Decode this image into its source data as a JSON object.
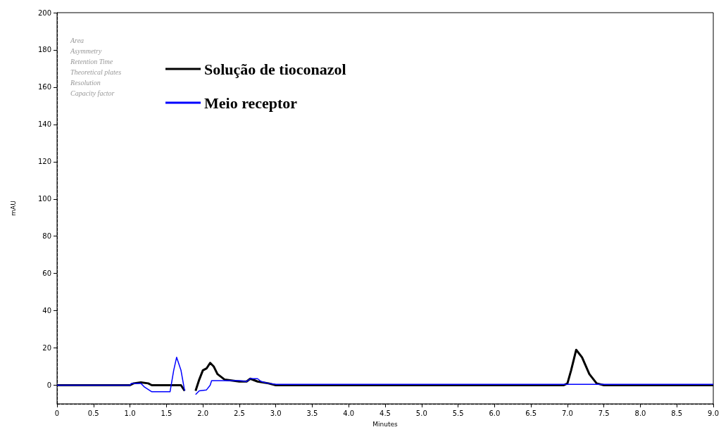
{
  "chart_data": {
    "type": "line",
    "xlabel": "Minutes",
    "ylabel": "mAU",
    "xlim": [
      0,
      9
    ],
    "xticks": [
      0,
      {
        "value": 0.5,
        "label": "0.5"
      },
      {
        "value": 1,
        "label": "1.0"
      },
      {
        "value": 1.5,
        "label": "1.5"
      },
      {
        "value": 2,
        "label": "2.0"
      },
      {
        "value": 2.5,
        "label": "2.5"
      },
      {
        "value": 3,
        "label": "3.0"
      },
      {
        "value": 3.5,
        "label": "3.5"
      },
      {
        "value": 4,
        "label": "4.0"
      },
      {
        "value": 4.5,
        "label": "4.5"
      },
      {
        "value": 5,
        "label": "5.0"
      },
      {
        "value": 5.5,
        "label": "5.5"
      },
      {
        "value": 6,
        "label": "6.0"
      },
      {
        "value": 6.5,
        "label": "6.5"
      },
      {
        "value": 7,
        "label": "7.0"
      },
      {
        "value": 7.5,
        "label": "7.5"
      },
      {
        "value": 8,
        "label": "8.0"
      },
      {
        "value": 8.5,
        "label": "8.5"
      },
      {
        "value": 9,
        "label": "9.0"
      }
    ],
    "ylim": [
      -10,
      200
    ],
    "yticks": [
      0,
      20,
      40,
      60,
      80,
      100,
      120,
      140,
      160,
      180,
      200
    ],
    "grid": false,
    "legend": "top left",
    "marker": "none",
    "line_style": "solid",
    "annotations": [
      "Area",
      "Asymmetry",
      "Retention Time",
      "Theoretical plates",
      "Resolution",
      "Capacity factor"
    ],
    "series": [
      {
        "name": "Solução de tioconazol",
        "color": "#000000",
        "x": [
          0,
          1.0,
          1.05,
          1.15,
          1.25,
          1.3,
          1.7,
          1.75,
          1.8,
          1.85,
          1.9,
          1.95,
          2.0,
          2.05,
          2.1,
          2.15,
          2.2,
          2.3,
          2.5,
          2.6,
          2.65,
          2.75,
          2.9,
          3.0,
          6.95,
          7.0,
          7.05,
          7.12,
          7.2,
          7.3,
          7.4,
          7.5,
          9.0
        ],
        "values": [
          0,
          0,
          1,
          1.5,
          1,
          0,
          0,
          -3,
          null,
          null,
          -3,
          3,
          8,
          9,
          12,
          10,
          6,
          3,
          2,
          2,
          3.5,
          2,
          1,
          0,
          0,
          1,
          8,
          19,
          15,
          6,
          1,
          0,
          0
        ]
      },
      {
        "name": "Meio receptor",
        "color": "#0000ff",
        "x": [
          0,
          1.0,
          1.02,
          1.15,
          1.2,
          1.3,
          1.55,
          1.6,
          1.64,
          1.7,
          1.75,
          1.8,
          1.84,
          1.9,
          1.95,
          2.05,
          2.1,
          2.12,
          2.5,
          2.6,
          2.65,
          2.75,
          2.8,
          2.9,
          3.0,
          9.0
        ],
        "values": [
          0,
          0,
          1,
          1,
          -1,
          -3.5,
          -3.5,
          8,
          15,
          8,
          -3,
          null,
          null,
          -5,
          -3,
          -2.5,
          0,
          2.5,
          2.5,
          2,
          3.5,
          3.5,
          2,
          1,
          0.5,
          0.5
        ]
      }
    ]
  }
}
